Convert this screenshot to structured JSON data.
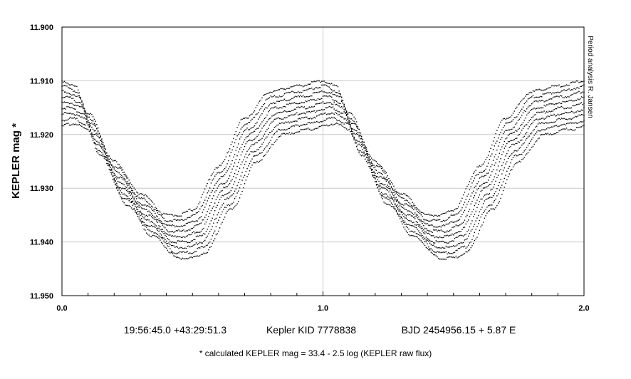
{
  "chart_data": {
    "type": "scatter",
    "ylabel": "KEPLER mag *",
    "xlabel": "",
    "xlim": [
      0.0,
      2.0
    ],
    "ylim": [
      11.95,
      11.9
    ],
    "y_inverted": true,
    "grid": true,
    "x_ticks": [
      "0.0",
      "1.0",
      "2.0"
    ],
    "y_ticks": [
      "11.900",
      "11.910",
      "11.920",
      "11.930",
      "11.940",
      "11.950"
    ],
    "side_note": "Period analysis  R. Jansen",
    "caption": {
      "coordinates": "19:56:45.0 +43:29:51.3",
      "target": "Kepler KID 7778838",
      "ephemeris": "BJD 2454956.15 + 5.87 E"
    },
    "footnote": "* calculated KEPLER mag = 33.4 - 2.5 log (KEPLER raw flux)",
    "marker_color": "#000000",
    "series": [
      {
        "offset": 0.0,
        "points": [
          [
            0.0,
            11.91
          ],
          [
            0.05,
            11.911
          ],
          [
            0.1,
            11.916
          ],
          [
            0.2,
            11.925
          ],
          [
            0.3,
            11.931
          ],
          [
            0.4,
            11.935
          ],
          [
            0.45,
            11.935
          ],
          [
            0.5,
            11.934
          ],
          [
            0.6,
            11.926
          ],
          [
            0.7,
            11.917
          ],
          [
            0.8,
            11.912
          ],
          [
            0.9,
            11.911
          ],
          [
            1.0,
            11.91
          ],
          [
            1.05,
            11.911
          ],
          [
            1.1,
            11.916
          ],
          [
            1.2,
            11.925
          ],
          [
            1.3,
            11.931
          ],
          [
            1.4,
            11.935
          ],
          [
            1.45,
            11.935
          ],
          [
            1.5,
            11.934
          ],
          [
            1.6,
            11.926
          ],
          [
            1.7,
            11.917
          ],
          [
            1.8,
            11.912
          ],
          [
            1.9,
            11.911
          ],
          [
            2.0,
            11.91
          ]
        ]
      },
      {
        "offset": 0.001
      },
      {
        "offset": 0.002
      },
      {
        "offset": 0.003
      },
      {
        "offset": 0.004
      },
      {
        "offset": 0.005
      },
      {
        "offset": 0.006
      },
      {
        "offset": 0.007
      },
      {
        "offset": 0.008
      }
    ]
  }
}
